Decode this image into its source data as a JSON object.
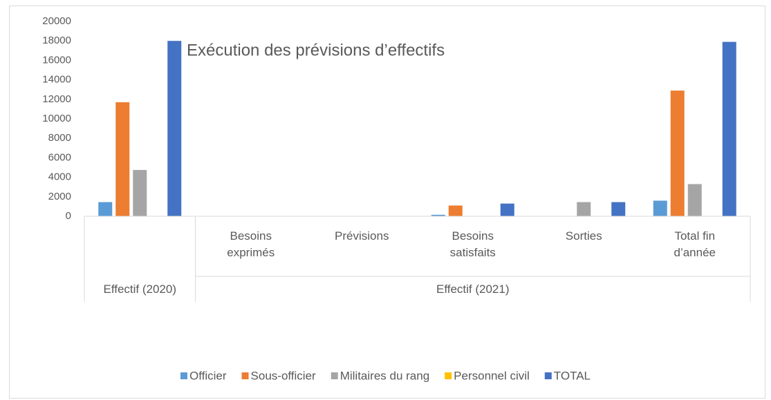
{
  "chart_data": {
    "type": "bar",
    "title": "Exécution des prévisions d’effectifs",
    "categories": [
      null,
      "Besoins exprimés",
      "Prévisions",
      "Besoins satisfaits",
      "Sorties",
      "Total fin d’année"
    ],
    "groups": [
      {
        "label": "Effectif (2020)",
        "span": 1
      },
      {
        "label": "Effectif (2021)",
        "span": 5
      }
    ],
    "series": [
      {
        "name": "Officier",
        "color": "#5b9bd5",
        "values": [
          1450,
          0,
          0,
          150,
          0,
          1600
        ]
      },
      {
        "name": "Sous-officier",
        "color": "#ed7d31",
        "values": [
          11700,
          0,
          0,
          1100,
          0,
          12900
        ]
      },
      {
        "name": "Militaires du rang",
        "color": "#a5a5a5",
        "values": [
          4750,
          0,
          0,
          0,
          1450,
          3300
        ]
      },
      {
        "name": "Personnel civil",
        "color": "#ffc000",
        "values": [
          0,
          0,
          0,
          0,
          0,
          0
        ]
      },
      {
        "name": "TOTAL",
        "color": "#4472c4",
        "values": [
          18000,
          0,
          0,
          1300,
          1450,
          17900
        ]
      }
    ],
    "ylim": [
      0,
      20000
    ],
    "yticks": [
      0,
      2000,
      4000,
      6000,
      8000,
      10000,
      12000,
      14000,
      16000,
      18000,
      20000
    ],
    "grid": false,
    "legend": "bottom"
  }
}
